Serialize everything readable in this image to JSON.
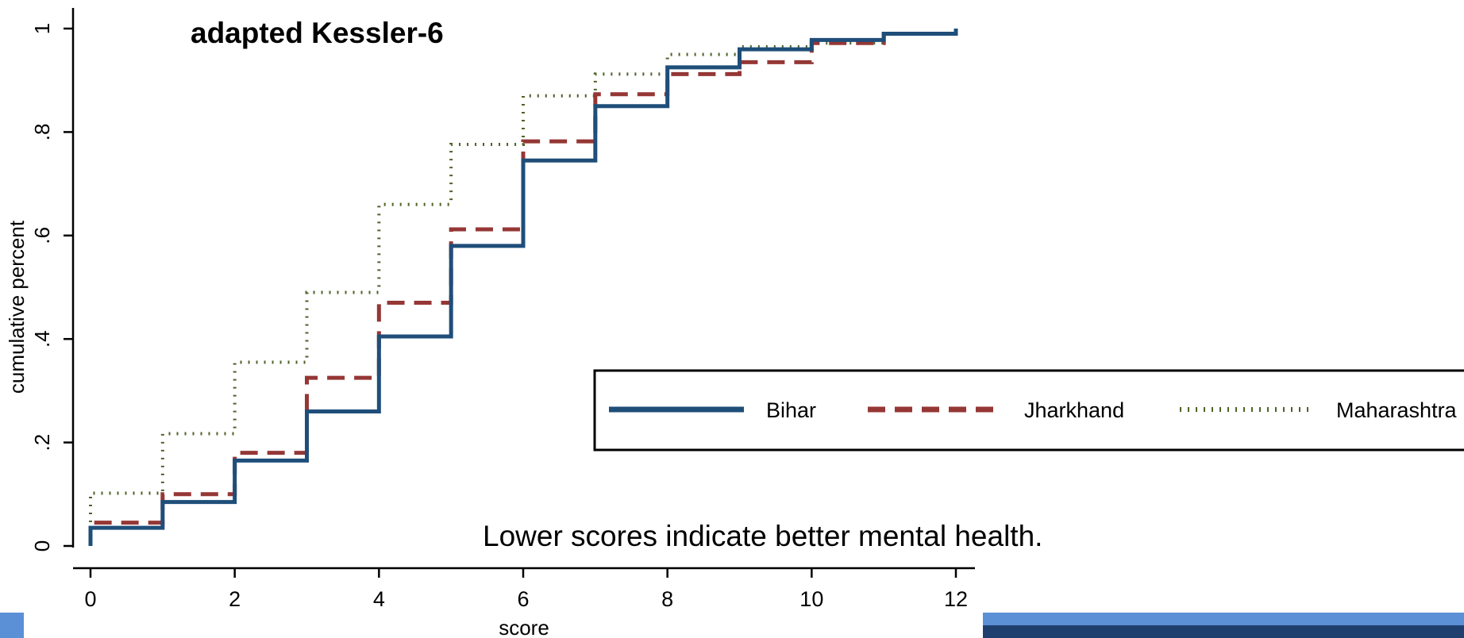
{
  "chart_data": {
    "type": "line",
    "step": true,
    "title": "adapted Kessler-6",
    "xlabel": "score",
    "ylabel": "cumulative percent",
    "xlim": [
      0,
      12
    ],
    "ylim": [
      0,
      1
    ],
    "x_ticks": [
      0,
      2,
      4,
      6,
      8,
      10,
      12
    ],
    "x_tick_labels": [
      "0",
      "2",
      "4",
      "6",
      "8",
      "10",
      "12"
    ],
    "y_ticks": [
      0,
      0.2,
      0.4,
      0.6,
      0.8,
      1
    ],
    "y_tick_labels": [
      "0",
      ".2",
      ".4",
      ".6",
      ".8",
      "1"
    ],
    "grid": false,
    "legend_position": "bottom-right",
    "annotation": "Lower scores indicate better mental health.",
    "x": [
      0,
      1,
      2,
      3,
      4,
      5,
      6,
      7,
      8,
      9,
      10,
      11,
      12
    ],
    "series": [
      {
        "name": "Bihar",
        "style": "solid",
        "color": "#1f4e79",
        "values": [
          0.035,
          0.085,
          0.165,
          0.26,
          0.405,
          0.58,
          0.745,
          0.85,
          0.925,
          0.96,
          0.978,
          0.99,
          1.0
        ]
      },
      {
        "name": "Jharkhand",
        "style": "dashed",
        "color": "#953735",
        "values": [
          0.045,
          0.1,
          0.18,
          0.325,
          0.47,
          0.612,
          0.782,
          0.873,
          0.912,
          0.935,
          0.972,
          0.99,
          1.0
        ]
      },
      {
        "name": "Maharashtra",
        "style": "dotted",
        "color": "#4f6228",
        "values": [
          0.102,
          0.217,
          0.355,
          0.49,
          0.66,
          0.776,
          0.87,
          0.912,
          0.95,
          0.965,
          0.972,
          0.99,
          1.0
        ]
      }
    ]
  },
  "accent": {
    "bar_light": "#5b8fd6",
    "bar_dark": "#1f3f6e"
  }
}
